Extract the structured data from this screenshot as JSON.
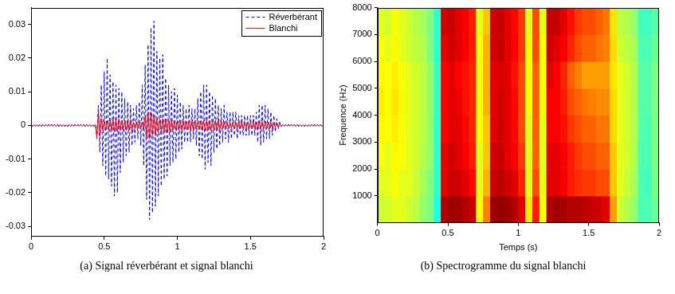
{
  "chart_data": [
    {
      "type": "line",
      "caption": "(a) Signal réverbérant et signal blanchi",
      "x": [
        0,
        0.01,
        0.02,
        0.03,
        0.04,
        0.05,
        0.06,
        0.07,
        0.08,
        0.09,
        0.1,
        0.11,
        0.12,
        0.13,
        0.14,
        0.15,
        0.16,
        0.17,
        0.18,
        0.19,
        0.2,
        0.21,
        0.22,
        0.23,
        0.24,
        0.25,
        0.26,
        0.27,
        0.28,
        0.29,
        0.3,
        0.31,
        0.32,
        0.33,
        0.34,
        0.35,
        0.36,
        0.37,
        0.38,
        0.39,
        0.4,
        0.41,
        0.42,
        0.43,
        0.44,
        0.45,
        0.46,
        0.47,
        0.48,
        0.49,
        0.5,
        0.51,
        0.52,
        0.53,
        0.54,
        0.55,
        0.56,
        0.57,
        0.58,
        0.59,
        0.6,
        0.61,
        0.62,
        0.63,
        0.64,
        0.65,
        0.66,
        0.67,
        0.68,
        0.69,
        0.7,
        0.71,
        0.72,
        0.73,
        0.74,
        0.75,
        0.76,
        0.77,
        0.78,
        0.79,
        0.8,
        0.81,
        0.82,
        0.83,
        0.84,
        0.85,
        0.86,
        0.87,
        0.88,
        0.89,
        0.9,
        0.91,
        0.92,
        0.93,
        0.94,
        0.95,
        0.96,
        0.97,
        0.98,
        0.99,
        1,
        1.01,
        1.02,
        1.03,
        1.04,
        1.05,
        1.06,
        1.07,
        1.08,
        1.09,
        1.1,
        1.11,
        1.12,
        1.13,
        1.14,
        1.15,
        1.16,
        1.17,
        1.18,
        1.19,
        1.2,
        1.21,
        1.22,
        1.23,
        1.24,
        1.25,
        1.26,
        1.27,
        1.28,
        1.29,
        1.3,
        1.31,
        1.32,
        1.33,
        1.34,
        1.35,
        1.36,
        1.37,
        1.38,
        1.39,
        1.4,
        1.41,
        1.42,
        1.43,
        1.44,
        1.45,
        1.46,
        1.47,
        1.48,
        1.49,
        1.5,
        1.51,
        1.52,
        1.53,
        1.54,
        1.55,
        1.56,
        1.57,
        1.58,
        1.59,
        1.6,
        1.61,
        1.62,
        1.63,
        1.64,
        1.65,
        1.66,
        1.67,
        1.68,
        1.69,
        1.7,
        1.71,
        1.72,
        1.73,
        1.74,
        1.75,
        1.76,
        1.77,
        1.78,
        1.79,
        1.8,
        1.81,
        1.82,
        1.83,
        1.84,
        1.85,
        1.86,
        1.87,
        1.88,
        1.89,
        1.9,
        1.91,
        1.92,
        1.93,
        1.94,
        1.95,
        1.96,
        1.97,
        1.98,
        1.99,
        2
      ],
      "series": [
        {
          "name": "Réverbérant",
          "color": "#0000ff",
          "line_style": "dashed",
          "values": [
            0.0003,
            -0.0003,
            0.0003,
            -0.0003,
            0.0003,
            -0.0003,
            0.0003,
            -0.0003,
            0.0003,
            -0.0003,
            0.0003,
            -0.0003,
            0.0003,
            -0.0003,
            0.0003,
            -0.0003,
            0.0003,
            -0.0003,
            0.0003,
            -0.0003,
            0.0003,
            -0.0003,
            0.0003,
            -0.0003,
            0.0003,
            -0.0003,
            0.0003,
            -0.0003,
            0.0003,
            -0.0003,
            0.0003,
            -0.0003,
            0.0003,
            -0.0003,
            0.0003,
            -0.0003,
            0.0003,
            -0.0003,
            0.0003,
            -0.0003,
            0.0003,
            -0.0003,
            0.0003,
            -0.0003,
            0.0003,
            -0.003,
            0.006,
            -0.008,
            0.012,
            -0.012,
            0.016,
            -0.015,
            0.02,
            -0.016,
            0.015,
            -0.018,
            0.013,
            -0.021,
            0.012,
            -0.02,
            0.011,
            -0.014,
            0.01,
            -0.011,
            0.008,
            -0.009,
            0.007,
            -0.008,
            0.006,
            -0.006,
            0.005,
            -0.005,
            0.006,
            -0.004,
            0.007,
            -0.006,
            0.012,
            -0.012,
            0.018,
            -0.022,
            0.024,
            -0.028,
            0.029,
            -0.026,
            0.031,
            -0.024,
            0.022,
            -0.021,
            0.02,
            -0.018,
            0.021,
            -0.016,
            0.014,
            -0.015,
            0.012,
            -0.012,
            0.01,
            -0.011,
            0.011,
            -0.01,
            0.009,
            -0.008,
            0.007,
            -0.007,
            0.006,
            -0.005,
            0.005,
            -0.005,
            0.006,
            -0.005,
            0.005,
            -0.004,
            0.005,
            -0.006,
            0.008,
            -0.009,
            0.01,
            -0.01,
            0.012,
            -0.013,
            0.012,
            -0.011,
            0.01,
            -0.012,
            0.009,
            -0.008,
            0.008,
            -0.007,
            0.006,
            -0.006,
            0.005,
            -0.005,
            0.006,
            -0.004,
            0.004,
            -0.005,
            0.004,
            -0.004,
            0.004,
            -0.003,
            0.004,
            -0.004,
            0.003,
            -0.003,
            0.003,
            -0.003,
            0.003,
            -0.003,
            0.003,
            -0.003,
            0.003,
            -0.003,
            0.003,
            -0.003,
            0.004,
            -0.005,
            0.006,
            -0.006,
            0.006,
            -0.005,
            0.006,
            -0.004,
            0.005,
            -0.004,
            0.004,
            -0.003,
            0.003,
            -0.002,
            0.002,
            -0.001,
            0.001,
            -0.0003,
            0.0003,
            -0.0003,
            0.0003,
            -0.0003,
            0.0003,
            -0.0003,
            0.0003,
            -0.0003,
            0.0003,
            -0.0003,
            0.0003,
            -0.0003,
            0.0003,
            -0.0003,
            0.0003,
            -0.0003,
            0.0003,
            -0.0003,
            0.0003,
            -0.0003,
            0.0003,
            -0.0003,
            0.0003,
            -0.0003,
            0.0003,
            -0.0003,
            0.0003,
            -0.0003,
            0.0003
          ]
        },
        {
          "name": "Blanchi",
          "color": "#ff0000",
          "line_style": "solid",
          "values": [
            0.0002,
            -0.0002,
            0.0002,
            -0.0002,
            0.0002,
            -0.0002,
            0.0002,
            -0.0002,
            0.0002,
            -0.0002,
            0.0002,
            -0.0002,
            0.0002,
            -0.0002,
            0.0002,
            -0.0002,
            0.0002,
            -0.0002,
            0.0002,
            -0.0002,
            0.0002,
            -0.0002,
            0.0002,
            -0.0002,
            0.0002,
            -0.0002,
            0.0002,
            -0.0002,
            0.0002,
            -0.0002,
            0.0002,
            -0.0002,
            0.0002,
            -0.0002,
            0.0002,
            -0.0002,
            0.0002,
            -0.0002,
            0.0002,
            -0.0002,
            0.0002,
            -0.0002,
            0.0002,
            -0.0002,
            0.0002,
            -0.004,
            0.004,
            -0.003,
            0.002,
            -0.0015,
            0.0015,
            -0.0015,
            0.0015,
            -0.0015,
            0.0015,
            -0.0015,
            0.002,
            -0.002,
            0.002,
            -0.002,
            0.002,
            -0.0015,
            0.0015,
            -0.0015,
            0.0015,
            -0.0015,
            0.0015,
            -0.0015,
            0.0015,
            -0.0015,
            0.001,
            -0.001,
            0.001,
            -0.001,
            0.001,
            -0.001,
            0.001,
            -0.001,
            0.003,
            -0.004,
            0.004,
            -0.004,
            0.004,
            -0.003,
            0.003,
            -0.003,
            0.002,
            -0.002,
            0.002,
            -0.002,
            0.002,
            -0.002,
            0.002,
            -0.002,
            0.002,
            -0.002,
            0.0015,
            -0.0015,
            0.0015,
            -0.0015,
            0.0015,
            -0.0015,
            0.0015,
            -0.0015,
            0.0015,
            -0.0012,
            0.0012,
            -0.0012,
            0.0015,
            -0.0015,
            0.0015,
            -0.0015,
            0.0015,
            -0.0012,
            0.0012,
            -0.0012,
            0.0015,
            -0.0015,
            0.0015,
            -0.0015,
            0.0015,
            -0.0015,
            0.0015,
            -0.0015,
            0.0015,
            -0.0015,
            0.0015,
            -0.0015,
            0.0015,
            -0.0015,
            0.0015,
            -0.001,
            0.001,
            -0.001,
            0.001,
            -0.001,
            0.001,
            -0.001,
            0.001,
            -0.001,
            0.001,
            -0.001,
            0.001,
            -0.001,
            0.001,
            -0.001,
            0.001,
            -0.001,
            0.001,
            -0.001,
            0.001,
            -0.001,
            0.001,
            -0.001,
            0.001,
            -0.0012,
            0.0012,
            -0.0012,
            0.0012,
            -0.0012,
            0.0012,
            -0.001,
            0.001,
            -0.001,
            0.001,
            -0.001,
            0.0006,
            -0.0006,
            0.0006,
            -0.0006,
            0.0006,
            -0.0002,
            0.0002,
            -0.0002,
            0.0002,
            -0.0002,
            0.0002,
            -0.0002,
            0.0002,
            -0.0002,
            0.0002,
            -0.0002,
            0.0002,
            -0.0002,
            0.0002,
            -0.0002,
            0.0002,
            -0.0002,
            0.0002,
            -0.0002,
            0.0002,
            -0.0002,
            0.0002,
            -0.0002,
            0.0002,
            -0.0002,
            0.0002,
            -0.0002,
            0.0002,
            -0.0002,
            0.0002
          ]
        }
      ],
      "xlim": [
        0,
        2
      ],
      "xticks": [
        0,
        0.5,
        1,
        1.5,
        2
      ],
      "ylim": [
        -0.033,
        0.035
      ],
      "yticks": [
        -0.03,
        -0.02,
        -0.01,
        0,
        0.01,
        0.02,
        0.03
      ],
      "grid": false,
      "legend": "upper right"
    },
    {
      "type": "heatmap",
      "caption": "(b) Spectrogramme du signal blanchi",
      "xlabel": "Temps (s)",
      "ylabel": "Frequence (Hz)",
      "x_bins": [
        0,
        0.05,
        0.1,
        0.15,
        0.2,
        0.25,
        0.3,
        0.35,
        0.4,
        0.45,
        0.5,
        0.55,
        0.6,
        0.65,
        0.7,
        0.75,
        0.8,
        0.85,
        0.9,
        0.95,
        1,
        1.05,
        1.1,
        1.15,
        1.2,
        1.25,
        1.3,
        1.35,
        1.4,
        1.45,
        1.5,
        1.55,
        1.6,
        1.65,
        1.7,
        1.75,
        1.8,
        1.85,
        1.9,
        1.95,
        2
      ],
      "y_bins": [
        0,
        1000,
        2000,
        3000,
        4000,
        5000,
        6000,
        7000,
        8000
      ],
      "cells": [
        [
          0.58,
          0.58,
          0.6,
          0.6,
          0.58,
          0.56,
          0.52,
          0.5,
          0.4,
          0.95,
          0.97,
          0.97,
          0.95,
          0.93,
          0.62,
          0.75,
          0.97,
          0.98,
          0.97,
          0.95,
          0.9,
          0.65,
          0.85,
          0.62,
          0.95,
          0.97,
          0.96,
          0.95,
          0.95,
          0.94,
          0.93,
          0.92,
          0.9,
          0.72,
          0.58,
          0.55,
          0.52,
          0.45,
          0.45,
          0.48
        ],
        [
          0.6,
          0.6,
          0.62,
          0.6,
          0.6,
          0.57,
          0.54,
          0.5,
          0.42,
          0.9,
          0.93,
          0.92,
          0.9,
          0.87,
          0.6,
          0.7,
          0.93,
          0.94,
          0.92,
          0.9,
          0.84,
          0.6,
          0.8,
          0.6,
          0.9,
          0.9,
          0.88,
          0.85,
          0.83,
          0.82,
          0.82,
          0.8,
          0.8,
          0.68,
          0.6,
          0.57,
          0.54,
          0.45,
          0.44,
          0.5
        ],
        [
          0.62,
          0.6,
          0.63,
          0.62,
          0.6,
          0.58,
          0.55,
          0.52,
          0.42,
          0.9,
          0.92,
          0.9,
          0.88,
          0.85,
          0.6,
          0.68,
          0.92,
          0.93,
          0.9,
          0.88,
          0.82,
          0.6,
          0.78,
          0.6,
          0.9,
          0.9,
          0.88,
          0.85,
          0.82,
          0.8,
          0.8,
          0.78,
          0.78,
          0.68,
          0.6,
          0.58,
          0.55,
          0.45,
          0.45,
          0.5
        ],
        [
          0.63,
          0.62,
          0.64,
          0.62,
          0.6,
          0.58,
          0.56,
          0.52,
          0.42,
          0.88,
          0.9,
          0.9,
          0.87,
          0.84,
          0.62,
          0.68,
          0.9,
          0.92,
          0.9,
          0.87,
          0.8,
          0.6,
          0.78,
          0.6,
          0.88,
          0.88,
          0.86,
          0.82,
          0.8,
          0.78,
          0.78,
          0.76,
          0.76,
          0.66,
          0.6,
          0.58,
          0.55,
          0.46,
          0.45,
          0.5
        ],
        [
          0.64,
          0.62,
          0.65,
          0.63,
          0.6,
          0.58,
          0.56,
          0.52,
          0.43,
          0.88,
          0.9,
          0.89,
          0.86,
          0.84,
          0.62,
          0.7,
          0.9,
          0.92,
          0.9,
          0.87,
          0.8,
          0.62,
          0.78,
          0.62,
          0.88,
          0.88,
          0.85,
          0.8,
          0.78,
          0.76,
          0.75,
          0.74,
          0.74,
          0.66,
          0.6,
          0.58,
          0.55,
          0.46,
          0.46,
          0.5
        ],
        [
          0.63,
          0.62,
          0.64,
          0.62,
          0.6,
          0.58,
          0.56,
          0.52,
          0.43,
          0.88,
          0.9,
          0.88,
          0.86,
          0.84,
          0.62,
          0.7,
          0.9,
          0.91,
          0.9,
          0.86,
          0.8,
          0.62,
          0.78,
          0.62,
          0.9,
          0.88,
          0.84,
          0.78,
          0.75,
          0.72,
          0.72,
          0.72,
          0.72,
          0.65,
          0.6,
          0.58,
          0.55,
          0.46,
          0.46,
          0.5
        ],
        [
          0.62,
          0.6,
          0.63,
          0.6,
          0.58,
          0.56,
          0.55,
          0.5,
          0.42,
          0.9,
          0.92,
          0.9,
          0.88,
          0.85,
          0.62,
          0.7,
          0.92,
          0.93,
          0.9,
          0.88,
          0.82,
          0.62,
          0.8,
          0.62,
          0.92,
          0.9,
          0.88,
          0.84,
          0.8,
          0.78,
          0.78,
          0.76,
          0.75,
          0.66,
          0.58,
          0.56,
          0.54,
          0.45,
          0.45,
          0.48
        ],
        [
          0.6,
          0.58,
          0.62,
          0.6,
          0.58,
          0.55,
          0.54,
          0.5,
          0.42,
          0.92,
          0.93,
          0.9,
          0.88,
          0.85,
          0.6,
          0.68,
          0.92,
          0.93,
          0.9,
          0.87,
          0.82,
          0.6,
          0.8,
          0.6,
          0.93,
          0.93,
          0.9,
          0.86,
          0.82,
          0.8,
          0.8,
          0.78,
          0.76,
          0.65,
          0.56,
          0.55,
          0.52,
          0.44,
          0.44,
          0.46
        ]
      ],
      "zlim": [
        0,
        1
      ],
      "xlim": [
        0,
        2
      ],
      "xticks": [
        0,
        0.5,
        1,
        1.5,
        2
      ],
      "ylim": [
        0,
        8000
      ],
      "yticks": [
        1000,
        2000,
        3000,
        4000,
        5000,
        6000,
        7000,
        8000
      ],
      "grid": false
    }
  ]
}
